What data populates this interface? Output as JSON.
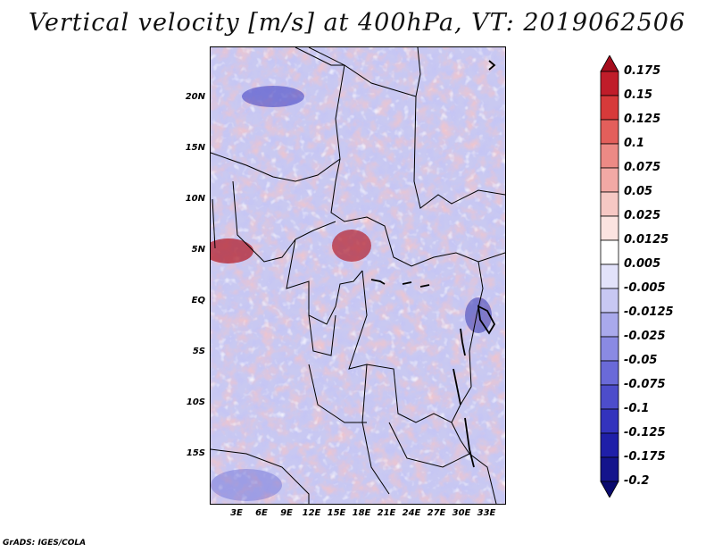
{
  "title": "Vertical velocity [m/s] at 400hPa, VT: 2019062506",
  "footer": "GrADS: IGES/COLA",
  "lat_labels": [
    "20N",
    "15N",
    "10N",
    "5N",
    "EQ",
    "5S",
    "10S",
    "15S"
  ],
  "lon_labels": [
    "3E",
    "6E",
    "9E",
    "12E",
    "15E",
    "18E",
    "21E",
    "24E",
    "27E",
    "30E",
    "33E"
  ],
  "colorbar": {
    "levels": [
      "0.175",
      "0.15",
      "0.125",
      "0.1",
      "0.075",
      "0.05",
      "0.025",
      "0.0125",
      "0.005",
      "-0.005",
      "-0.0125",
      "-0.025",
      "-0.05",
      "-0.075",
      "-0.1",
      "-0.125",
      "-0.175",
      "-0.2"
    ],
    "colors": [
      "#a50d1d",
      "#c01d2a",
      "#d73a3a",
      "#e35f5b",
      "#ec8a85",
      "#f2a9a5",
      "#f6c8c4",
      "#fbe3e0",
      "#ffffff",
      "#e2e2fa",
      "#c8c8f3",
      "#a9a9ec",
      "#8a8ae3",
      "#6a6ad8",
      "#4d4dcb",
      "#3333bd",
      "#1f1fa8",
      "#14148c",
      "#0a0a6e"
    ]
  }
}
